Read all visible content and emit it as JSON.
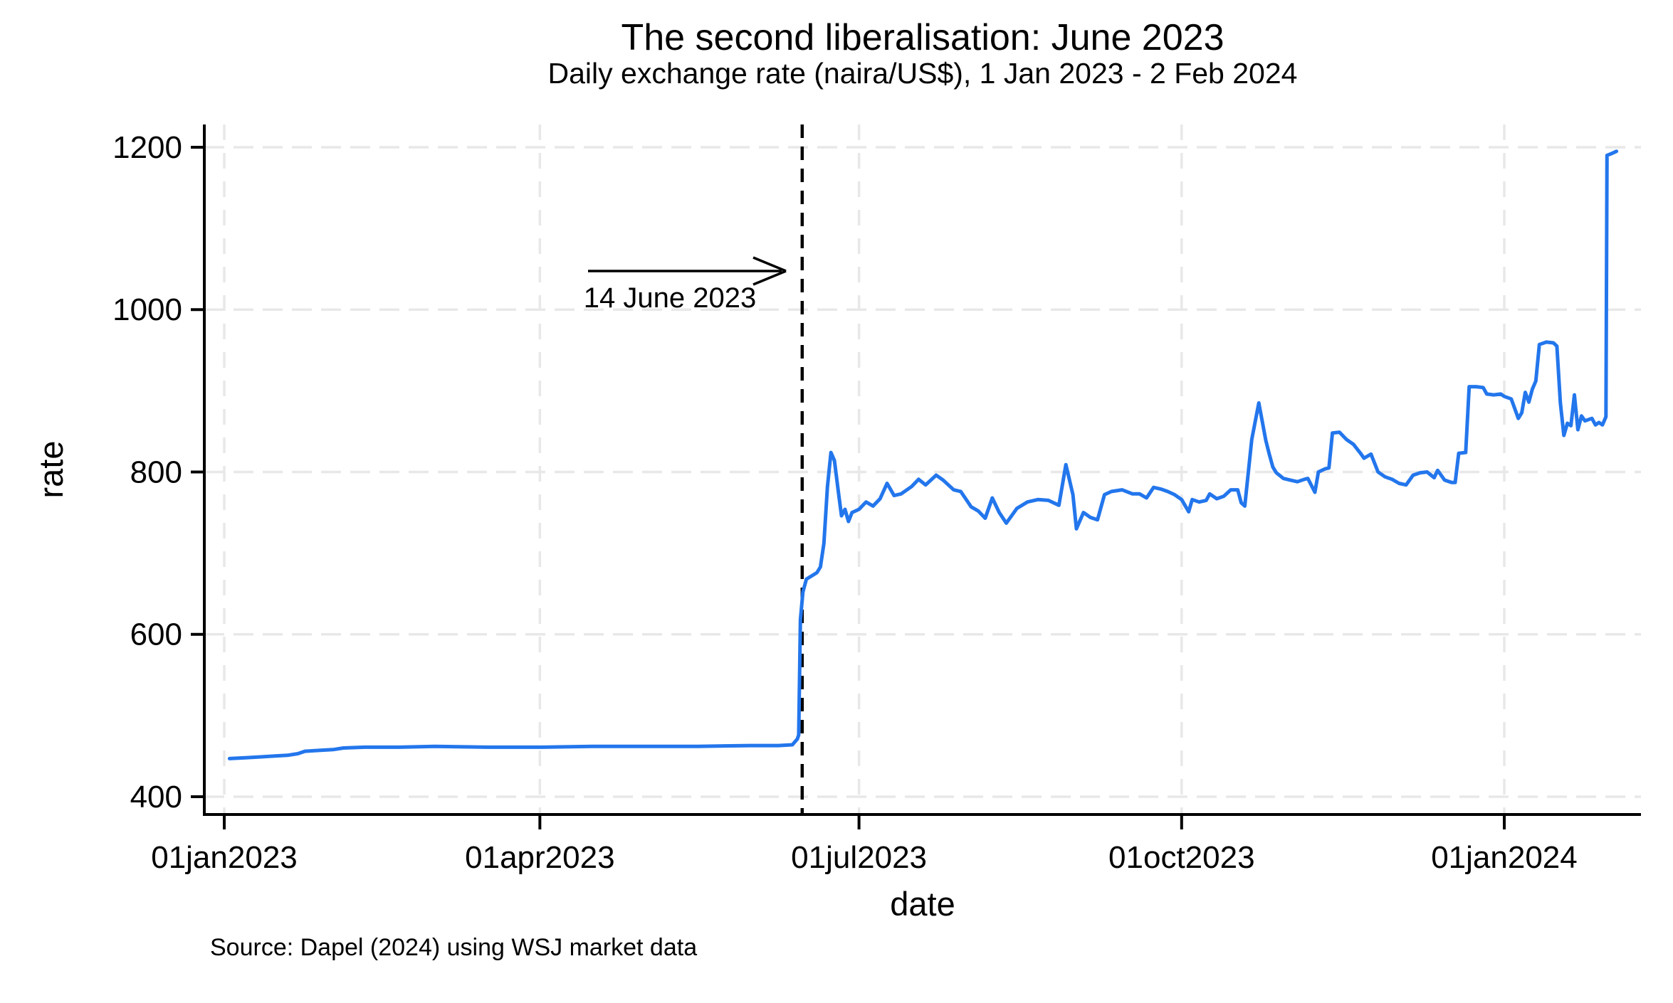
{
  "chart_data": {
    "type": "line",
    "title": "The second liberalisation: June 2023",
    "subtitle": "Daily exchange rate (naira/US$), 1 Jan 2023 - 2 Feb 2024",
    "source_note": "Source: Dapel (2024) using WSJ market data",
    "xlabel": "date",
    "ylabel": "rate",
    "x_unit": "days since 1 Jan 2023",
    "grid": true,
    "legend": "none",
    "ylim": [
      378,
      1225
    ],
    "xlim_days": [
      -6,
      404
    ],
    "y_ticks": [
      400,
      600,
      800,
      1000,
      1200
    ],
    "x_ticks": [
      {
        "day": 0,
        "label": "01jan2023"
      },
      {
        "day": 90,
        "label": "01apr2023"
      },
      {
        "day": 181,
        "label": "01jul2023"
      },
      {
        "day": 273,
        "label": "01oct2023"
      },
      {
        "day": 365,
        "label": "01jan2024"
      }
    ],
    "event_line": {
      "day": 164.8,
      "label": "14 June 2023",
      "style": "black-dashed-vertical"
    },
    "series": [
      {
        "name": "naira per US$ daily exchange rate",
        "points": [
          [
            1.5,
            447
          ],
          [
            6,
            448
          ],
          [
            10,
            449
          ],
          [
            14,
            450
          ],
          [
            18,
            451
          ],
          [
            21,
            453
          ],
          [
            23,
            456
          ],
          [
            27,
            457
          ],
          [
            31,
            458
          ],
          [
            34,
            460
          ],
          [
            40,
            461
          ],
          [
            50,
            461
          ],
          [
            60,
            462
          ],
          [
            75,
            461
          ],
          [
            90,
            461
          ],
          [
            105,
            462
          ],
          [
            120,
            462
          ],
          [
            135,
            462
          ],
          [
            150,
            463
          ],
          [
            158,
            463
          ],
          [
            162,
            464
          ],
          [
            163.4,
            471
          ],
          [
            163.8,
            476
          ],
          [
            164.3,
            618
          ],
          [
            165,
            652
          ],
          [
            166,
            668
          ],
          [
            167.5,
            672
          ],
          [
            169,
            676
          ],
          [
            170,
            683
          ],
          [
            171,
            712
          ],
          [
            172,
            782
          ],
          [
            173,
            824
          ],
          [
            174,
            814
          ],
          [
            175,
            779
          ],
          [
            176,
            746
          ],
          [
            177,
            754
          ],
          [
            178,
            739
          ],
          [
            179,
            750
          ],
          [
            181,
            754
          ],
          [
            183,
            763
          ],
          [
            185,
            758
          ],
          [
            187,
            767
          ],
          [
            189,
            786
          ],
          [
            191,
            771
          ],
          [
            193,
            773
          ],
          [
            196,
            782
          ],
          [
            198,
            791
          ],
          [
            200,
            784
          ],
          [
            203,
            796
          ],
          [
            205,
            790
          ],
          [
            208,
            778
          ],
          [
            210,
            776
          ],
          [
            213,
            757
          ],
          [
            215,
            752
          ],
          [
            217,
            743
          ],
          [
            219,
            768
          ],
          [
            221,
            750
          ],
          [
            223,
            737
          ],
          [
            226,
            755
          ],
          [
            229,
            763
          ],
          [
            232,
            766
          ],
          [
            235,
            765
          ],
          [
            238,
            759
          ],
          [
            240,
            809
          ],
          [
            242,
            772
          ],
          [
            243,
            730
          ],
          [
            245,
            750
          ],
          [
            247,
            744
          ],
          [
            249,
            741
          ],
          [
            251,
            772
          ],
          [
            253,
            776
          ],
          [
            256,
            778
          ],
          [
            259,
            773
          ],
          [
            261,
            773
          ],
          [
            263,
            768
          ],
          [
            265,
            781
          ],
          [
            267,
            779
          ],
          [
            269,
            776
          ],
          [
            271,
            772
          ],
          [
            273,
            766
          ],
          [
            275,
            751
          ],
          [
            276,
            766
          ],
          [
            278,
            763
          ],
          [
            280,
            765
          ],
          [
            281,
            773
          ],
          [
            283,
            767
          ],
          [
            285,
            770
          ],
          [
            287,
            778
          ],
          [
            289,
            778
          ],
          [
            290,
            762
          ],
          [
            291,
            758
          ],
          [
            293,
            840
          ],
          [
            295,
            885
          ],
          [
            296,
            862
          ],
          [
            297,
            839
          ],
          [
            298,
            822
          ],
          [
            299,
            806
          ],
          [
            300,
            799
          ],
          [
            302,
            792
          ],
          [
            304,
            790
          ],
          [
            306,
            788
          ],
          [
            308,
            791
          ],
          [
            309,
            792
          ],
          [
            311,
            775
          ],
          [
            312,
            800
          ],
          [
            314,
            804
          ],
          [
            315,
            805
          ],
          [
            316,
            848
          ],
          [
            318,
            849
          ],
          [
            320,
            840
          ],
          [
            322,
            834
          ],
          [
            324,
            823
          ],
          [
            325,
            817
          ],
          [
            327,
            822
          ],
          [
            329,
            800
          ],
          [
            331,
            794
          ],
          [
            333,
            791
          ],
          [
            335,
            786
          ],
          [
            337,
            784
          ],
          [
            339,
            796
          ],
          [
            341,
            799
          ],
          [
            343,
            800
          ],
          [
            345,
            793
          ],
          [
            346,
            802
          ],
          [
            348,
            790
          ],
          [
            350,
            787
          ],
          [
            351,
            787
          ],
          [
            352,
            823
          ],
          [
            354,
            824
          ],
          [
            355,
            905
          ],
          [
            357,
            905
          ],
          [
            359,
            904
          ],
          [
            360,
            896
          ],
          [
            362,
            895
          ],
          [
            364,
            896
          ],
          [
            365,
            893
          ],
          [
            367,
            890
          ],
          [
            369,
            866
          ],
          [
            370,
            873
          ],
          [
            371,
            898
          ],
          [
            372,
            886
          ],
          [
            373,
            902
          ],
          [
            374,
            912
          ],
          [
            375,
            957
          ],
          [
            377,
            960
          ],
          [
            379,
            959
          ],
          [
            380,
            955
          ],
          [
            381,
            885
          ],
          [
            382,
            845
          ],
          [
            383,
            860
          ],
          [
            384,
            857
          ],
          [
            385,
            895
          ],
          [
            386,
            852
          ],
          [
            387,
            869
          ],
          [
            388,
            863
          ],
          [
            390,
            866
          ],
          [
            391,
            858
          ],
          [
            392,
            861
          ],
          [
            393,
            858
          ],
          [
            394,
            868
          ],
          [
            394.3,
            1190
          ],
          [
            395.5,
            1192
          ],
          [
            397,
            1195
          ]
        ]
      }
    ]
  },
  "colors": {
    "series": "#2376ec",
    "grid": "#e8e8e8",
    "axis": "#000000",
    "event_line": "#000000",
    "background": "#ffffff",
    "text": "#000000"
  }
}
